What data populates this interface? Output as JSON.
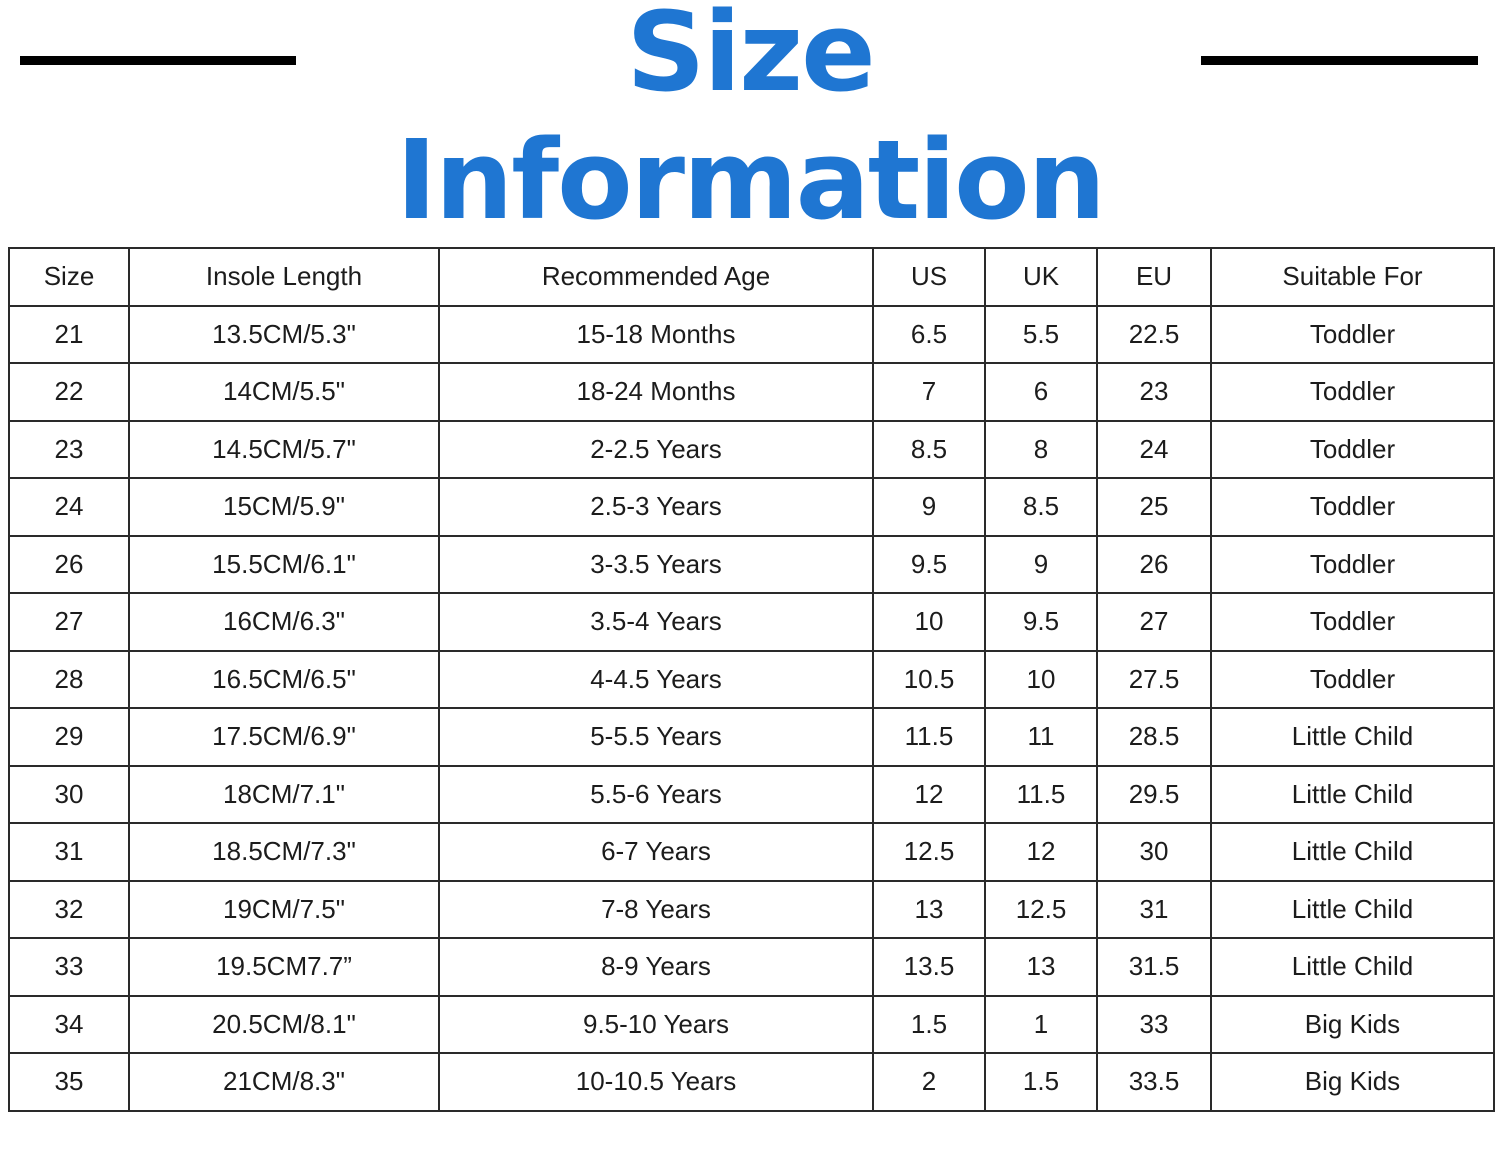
{
  "title": "Size Information",
  "table": {
    "headers": [
      "Size",
      "Insole Length",
      "Recommended Age",
      "US",
      "UK",
      "EU",
      "Suitable For"
    ],
    "rows": [
      [
        "21",
        "13.5CM/5.3\"",
        "15-18 Months",
        "6.5",
        "5.5",
        "22.5",
        "Toddler"
      ],
      [
        "22",
        "14CM/5.5\"",
        "18-24 Months",
        "7",
        "6",
        "23",
        "Toddler"
      ],
      [
        "23",
        "14.5CM/5.7\"",
        "2-2.5 Years",
        "8.5",
        "8",
        "24",
        "Toddler"
      ],
      [
        "24",
        "15CM/5.9\"",
        "2.5-3 Years",
        "9",
        "8.5",
        "25",
        "Toddler"
      ],
      [
        "26",
        "15.5CM/6.1\"",
        "3-3.5 Years",
        "9.5",
        "9",
        "26",
        "Toddler"
      ],
      [
        "27",
        "16CM/6.3\"",
        "3.5-4 Years",
        "10",
        "9.5",
        "27",
        "Toddler"
      ],
      [
        "28",
        "16.5CM/6.5\"",
        "4-4.5 Years",
        "10.5",
        "10",
        "27.5",
        "Toddler"
      ],
      [
        "29",
        "17.5CM/6.9\"",
        "5-5.5 Years",
        "11.5",
        "11",
        "28.5",
        "Little Child"
      ],
      [
        "30",
        "18CM/7.1\"",
        "5.5-6 Years",
        "12",
        "11.5",
        "29.5",
        "Little Child"
      ],
      [
        "31",
        "18.5CM/7.3\"",
        "6-7 Years",
        "12.5",
        "12",
        "30",
        "Little Child"
      ],
      [
        "32",
        "19CM/7.5\"",
        "7-8 Years",
        "13",
        "12.5",
        "31",
        "Little Child"
      ],
      [
        "33",
        "19.5CM7.7”",
        "8-9 Years",
        "13.5",
        "13",
        "31.5",
        "Little Child"
      ],
      [
        "34",
        "20.5CM/8.1\"",
        "9.5-10 Years",
        "1.5",
        "1",
        "33",
        "Big Kids"
      ],
      [
        "35",
        "21CM/8.3\"",
        "10-10.5 Years",
        "2",
        "1.5",
        "33.5",
        "Big Kids"
      ]
    ]
  },
  "colors": {
    "title": "#1f76d2",
    "rule": "#000000",
    "grid": "#2a2a2a"
  }
}
